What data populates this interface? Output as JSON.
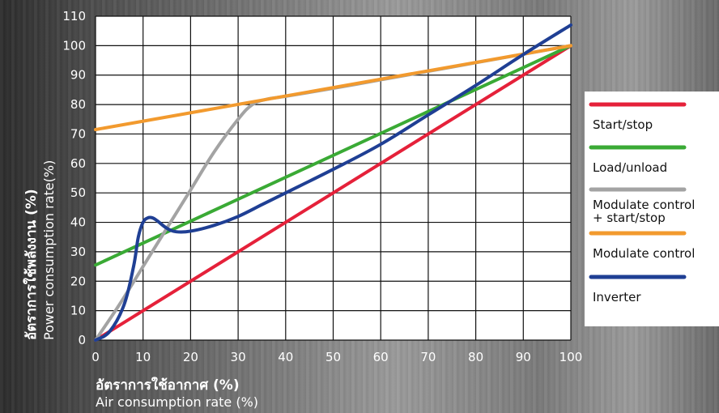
{
  "chart_data": {
    "type": "line",
    "xlabel_th": "อัตราการใช้อากาศ (%)",
    "xlabel": "Air consumption rate (%)",
    "ylabel_th": "อัตราการใช้พลังงาน (%)",
    "ylabel": "Power consumption rate(%)",
    "xlim": [
      0,
      100
    ],
    "ylim": [
      0,
      110
    ],
    "x_ticks": [
      0,
      10,
      20,
      30,
      40,
      50,
      60,
      70,
      80,
      90,
      100
    ],
    "y_ticks": [
      0,
      10,
      20,
      30,
      40,
      50,
      60,
      70,
      80,
      90,
      100,
      110
    ],
    "grid": true,
    "legend_position": "right",
    "series": [
      {
        "name": "Start/stop",
        "color": "#e5213a",
        "x": [
          0,
          100
        ],
        "y": [
          0,
          100
        ]
      },
      {
        "name": "Load/unload",
        "color": "#3aaa35",
        "x": [
          0,
          100
        ],
        "y": [
          25.5,
          100
        ]
      },
      {
        "name": "Modulate control\n+ start/stop",
        "color": "#a3a3a3",
        "x": [
          0,
          5,
          10,
          15,
          20,
          25,
          30,
          33,
          36,
          40,
          50,
          60,
          70,
          80,
          90,
          100
        ],
        "y": [
          0,
          12,
          25,
          38,
          51,
          64,
          75,
          80,
          81.8,
          82.8,
          85.5,
          88.4,
          91.3,
          94.2,
          97.1,
          100
        ]
      },
      {
        "name": "Modulate control",
        "color": "#f29a2e",
        "x": [
          0,
          100
        ],
        "y": [
          71.5,
          100
        ]
      },
      {
        "name": "Inverter",
        "color": "#1f3f94",
        "x": [
          0,
          3,
          6,
          8,
          9,
          10,
          11,
          12,
          13,
          15,
          17,
          20,
          25,
          30,
          35,
          40,
          50,
          60,
          70,
          80,
          90,
          100
        ],
        "y": [
          0,
          3,
          12,
          25,
          35,
          40,
          41.5,
          41.5,
          40.5,
          38,
          36.8,
          37,
          39,
          42,
          46,
          50,
          58,
          66.5,
          76.5,
          86.5,
          97,
          107
        ]
      }
    ]
  }
}
